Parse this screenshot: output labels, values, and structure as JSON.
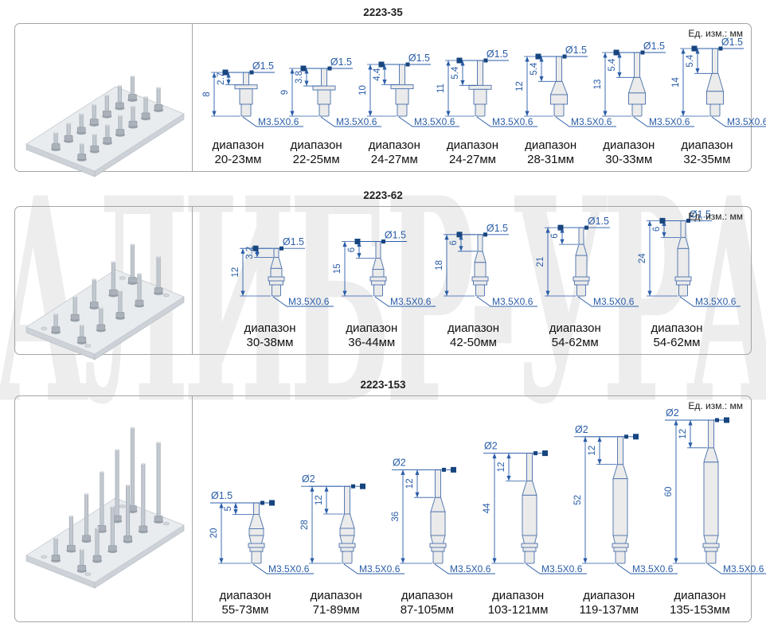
{
  "page": {
    "watermark": "КАЛИБР-УРАЛ",
    "colors": {
      "line": "#2a5da8",
      "arrow": "#17457f",
      "probe_fill": "#ebebeb",
      "probe_stroke": "#587bb0",
      "black_text": "#1a1a1a",
      "border": "#a5a5a5",
      "watermark": "#ededed",
      "plate_top": "#e9ecef",
      "plate_side": "#ccd2d7",
      "metal": "#c2c8cf",
      "metal_dark": "#9aa2ab"
    }
  },
  "panels": [
    {
      "title": "2223-35",
      "units_label": "Ед. изм.: мм",
      "range_word": "диапазон",
      "photo": {
        "probe_count": 14,
        "rows": 2,
        "corner_holes": false
      },
      "probes": [
        {
          "dia": "Ø1.5",
          "inner": "2.7",
          "total": "8",
          "thread": "M3.5X0.6",
          "range": "20-23мм"
        },
        {
          "dia": "Ø1.5",
          "inner": "3.8",
          "total": "9",
          "thread": "M3.5X0.6",
          "range": "22-25мм"
        },
        {
          "dia": "Ø1.5",
          "inner": "4.4",
          "total": "10",
          "thread": "M3.5X0.6",
          "range": "24-27мм"
        },
        {
          "dia": "Ø1.5",
          "inner": "5.4",
          "total": "11",
          "thread": "M3.5X0.6",
          "range": "24-27мм"
        },
        {
          "dia": "Ø1.5",
          "inner": "5.4",
          "total": "12",
          "thread": "M3.5X0.6",
          "range": "28-31мм"
        },
        {
          "dia": "Ø1.5",
          "inner": "5.4",
          "total": "13",
          "thread": "M3.5X0.6",
          "range": "30-33мм"
        },
        {
          "dia": "Ø1.5",
          "inner": "5.4",
          "total": "14",
          "thread": "M3.5X0.6",
          "range": "32-35мм"
        }
      ]
    },
    {
      "title": "2223-62",
      "units_label": "Ед. изм.: мм",
      "range_word": "диапазон",
      "photo": {
        "probe_count": 10,
        "rows": 2,
        "corner_holes": true
      },
      "probes": [
        {
          "dia": "Ø1.5",
          "inner": "3.2",
          "total": "12",
          "thread": "M3.5X0.6",
          "range": "30-38мм"
        },
        {
          "dia": "Ø1.5",
          "inner": "6",
          "total": "15",
          "thread": "M3.5X0.6",
          "range": "36-44мм"
        },
        {
          "dia": "Ø1.5",
          "inner": "6",
          "total": "18",
          "thread": "M3.5X0.6",
          "range": "42-50мм"
        },
        {
          "dia": "Ø1.5",
          "inner": "6",
          "total": "21",
          "thread": "M3.5X0.6",
          "range": "54-62мм"
        },
        {
          "dia": "Ø1.5",
          "inner": "6",
          "total": "24",
          "thread": "M3.5X0.6",
          "range": "54-62мм"
        }
      ]
    },
    {
      "title": "2223-153",
      "units_label": "Ед. изм.: мм",
      "range_word": "диапазон",
      "photo": {
        "probe_count": 12,
        "rows": 2,
        "corner_holes": true
      },
      "probes": [
        {
          "dia": "Ø1.5",
          "inner": "5",
          "total": "20",
          "thread": "M3.5X0.6",
          "range": "55-73мм"
        },
        {
          "dia": "Ø2",
          "inner": "12",
          "total": "28",
          "thread": "M3.5X0.6",
          "range": "71-89мм"
        },
        {
          "dia": "Ø2",
          "inner": "12",
          "total": "36",
          "thread": "M3.5X0.6",
          "range": "87-105мм"
        },
        {
          "dia": "Ø2",
          "inner": "12",
          "total": "44",
          "thread": "M3.5X0.6",
          "range": "103-121мм"
        },
        {
          "dia": "Ø2",
          "inner": "12",
          "total": "52",
          "thread": "M3.5X0.6",
          "range": "119-137мм"
        },
        {
          "dia": "Ø2",
          "inner": "12",
          "total": "60",
          "thread": "M3.5X0.6",
          "range": "135-153мм"
        }
      ]
    }
  ]
}
